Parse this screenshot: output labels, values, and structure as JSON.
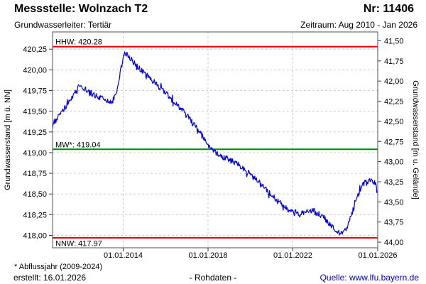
{
  "header": {
    "title": "Messstelle: Wolnzach T2",
    "station_no": "Nr: 11406",
    "aquifer": "Grundwasserleiter: Tertiär",
    "period": "Zeitraum: Aug 2010 - Jan 2026"
  },
  "footer": {
    "footnote": "* Abflussjahr (2009-2024)",
    "created": "erstellt: 16.01.2026",
    "data_type": "- Rohdaten -",
    "source": "Quelle: www.lfu.bayern.de"
  },
  "colors": {
    "series_blue": "#0000ee",
    "extreme_red": "#ee0000",
    "mean_green": "#008a00",
    "grid_gray": "#cccccc",
    "frame_gray": "#6e6e6e",
    "tick_black": "#3c3c3c",
    "link_blue": "#0000d8"
  },
  "chart_data": {
    "type": "line",
    "title": "",
    "xlabel": "",
    "left_ylabel": "Grundwasserstand [m ü. NN]",
    "right_ylabel": "Grundwasserstand [m u. Gelände]",
    "grid": true,
    "xlim": [
      2010.67,
      2026.0
    ],
    "ylim_left": [
      417.85,
      420.458
    ],
    "ylim_right": [
      44.07,
      41.39
    ],
    "x_ticks": [
      {
        "year": 2014,
        "label": "01.01.2014"
      },
      {
        "year": 2018,
        "label": "01.01.2018"
      },
      {
        "year": 2022,
        "label": "01.01.2022"
      },
      {
        "year": 2026,
        "label": "01.01.2026"
      }
    ],
    "left_ticks": [
      {
        "value": 420.25,
        "label": "420,25"
      },
      {
        "value": 420.0,
        "label": "420,00"
      },
      {
        "value": 419.75,
        "label": "419,75"
      },
      {
        "value": 419.5,
        "label": "419,50"
      },
      {
        "value": 419.25,
        "label": "419,25"
      },
      {
        "value": 419.0,
        "label": "419,00"
      },
      {
        "value": 418.75,
        "label": "418,75"
      },
      {
        "value": 418.5,
        "label": "418,50"
      },
      {
        "value": 418.25,
        "label": "418,25"
      },
      {
        "value": 418.0,
        "label": "418,00"
      }
    ],
    "right_ticks": [
      {
        "value": 41.5,
        "label": "41,50"
      },
      {
        "value": 41.75,
        "label": "41,75"
      },
      {
        "value": 42.0,
        "label": "42,00"
      },
      {
        "value": 42.25,
        "label": "42,25"
      },
      {
        "value": 42.5,
        "label": "42,50"
      },
      {
        "value": 42.75,
        "label": "42,75"
      },
      {
        "value": 43.0,
        "label": "43,00"
      },
      {
        "value": 43.25,
        "label": "43,25"
      },
      {
        "value": 43.5,
        "label": "43,50"
      },
      {
        "value": 43.75,
        "label": "43,75"
      },
      {
        "value": 44.0,
        "label": "44,00"
      }
    ],
    "reference_lines": [
      {
        "name": "HHW",
        "label": "HHW: 420.28",
        "value": 420.28,
        "color": "#ee0000",
        "label_position": "above"
      },
      {
        "name": "MW",
        "label": "MW*: 419.04",
        "value": 419.04,
        "color": "#008a00",
        "label_position": "above"
      },
      {
        "name": "NNW",
        "label": "NNW: 417.97",
        "value": 417.97,
        "color": "#ee0000",
        "label_position": "below"
      }
    ],
    "series": [
      {
        "name": "Grundwasserstand Rohdaten",
        "color": "#0000ee",
        "points": [
          [
            2010.67,
            419.32
          ],
          [
            2010.85,
            419.4
          ],
          [
            2011.05,
            419.47
          ],
          [
            2011.3,
            419.55
          ],
          [
            2011.55,
            419.65
          ],
          [
            2011.78,
            419.75
          ],
          [
            2011.97,
            419.82
          ],
          [
            2012.15,
            419.78
          ],
          [
            2012.4,
            419.73
          ],
          [
            2012.7,
            419.69
          ],
          [
            2013.0,
            419.65
          ],
          [
            2013.25,
            419.62
          ],
          [
            2013.45,
            419.6
          ],
          [
            2013.62,
            419.68
          ],
          [
            2013.78,
            419.83
          ],
          [
            2013.92,
            420.05
          ],
          [
            2014.08,
            420.21
          ],
          [
            2014.2,
            420.19
          ],
          [
            2014.45,
            420.11
          ],
          [
            2014.7,
            420.03
          ],
          [
            2014.95,
            419.97
          ],
          [
            2015.25,
            419.9
          ],
          [
            2015.55,
            419.83
          ],
          [
            2015.85,
            419.76
          ],
          [
            2016.15,
            419.68
          ],
          [
            2016.45,
            419.6
          ],
          [
            2016.75,
            419.52
          ],
          [
            2017.05,
            419.43
          ],
          [
            2017.35,
            419.33
          ],
          [
            2017.65,
            419.23
          ],
          [
            2017.9,
            419.13
          ],
          [
            2018.1,
            419.06
          ],
          [
            2018.35,
            419.0
          ],
          [
            2018.6,
            418.96
          ],
          [
            2018.9,
            418.93
          ],
          [
            2019.2,
            418.89
          ],
          [
            2019.5,
            418.84
          ],
          [
            2019.8,
            418.78
          ],
          [
            2020.1,
            418.71
          ],
          [
            2020.4,
            418.64
          ],
          [
            2020.7,
            418.57
          ],
          [
            2020.95,
            418.5
          ],
          [
            2021.2,
            418.43
          ],
          [
            2021.5,
            418.37
          ],
          [
            2021.8,
            418.31
          ],
          [
            2022.1,
            418.28
          ],
          [
            2022.4,
            418.26
          ],
          [
            2022.7,
            418.29
          ],
          [
            2022.95,
            418.3
          ],
          [
            2023.2,
            418.25
          ],
          [
            2023.5,
            418.21
          ],
          [
            2023.75,
            418.13
          ],
          [
            2024.0,
            418.06
          ],
          [
            2024.25,
            418.02
          ],
          [
            2024.45,
            418.05
          ],
          [
            2024.65,
            418.16
          ],
          [
            2024.85,
            418.32
          ],
          [
            2025.05,
            418.47
          ],
          [
            2025.25,
            418.6
          ],
          [
            2025.45,
            418.65
          ],
          [
            2025.65,
            418.67
          ],
          [
            2025.8,
            418.66
          ],
          [
            2025.92,
            418.61
          ],
          [
            2026.0,
            418.5
          ]
        ]
      }
    ],
    "noise_band_m": 0.07
  }
}
